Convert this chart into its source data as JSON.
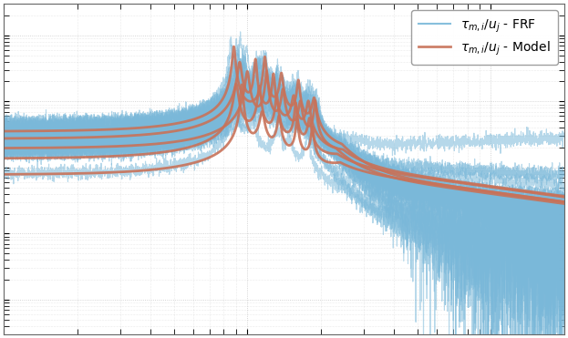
{
  "frf_color": "#7ab8d9",
  "model_color": "#c87259",
  "frf_alpha": 0.55,
  "model_alpha": 0.9,
  "frf_linewidth": 0.8,
  "model_linewidth": 2.0,
  "background_color": "#ffffff",
  "grid_color": "#b0b0b0",
  "freq_min": 10,
  "freq_max": 2000,
  "amp_min": 3e-06,
  "amp_max": 0.3,
  "legend_frf_label": "$\\tau_{m,i}/u_j$ - FRF",
  "legend_model_label": "$\\tau_{m,i}/u_j$ - Model",
  "n_frf_curves": 30,
  "n_model_curves": 5,
  "figsize": [
    6.23,
    3.71
  ],
  "dpi": 100
}
